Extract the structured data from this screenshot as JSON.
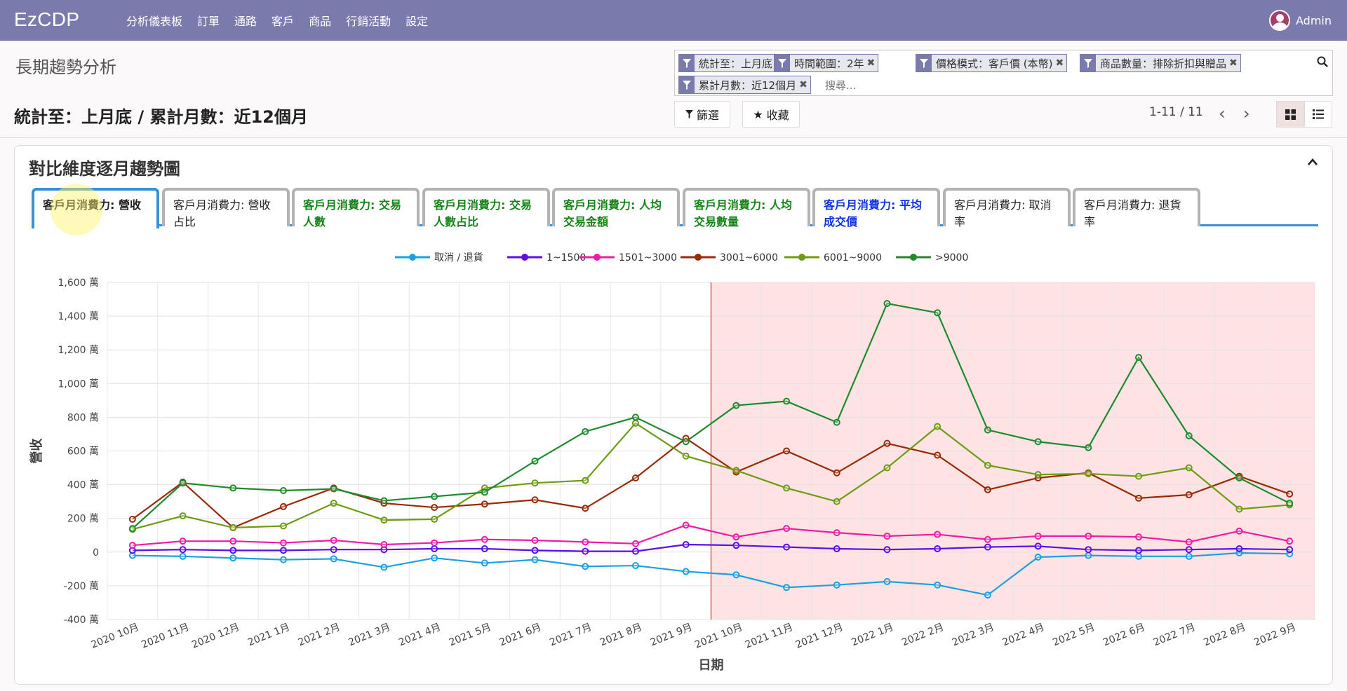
{
  "app": {
    "brand": "EzCDP",
    "menu": [
      "分析儀表板",
      "訂單",
      "通路",
      "客戶",
      "商品",
      "行銷活動",
      "設定"
    ],
    "user": "Admin"
  },
  "page": {
    "title": "長期趨勢分析",
    "subtitle": "統計至：上月底 / 累計月數：近12個月"
  },
  "search": {
    "facets": [
      "統計至：上月底",
      "時間範圍：2年",
      "價格模式：客戶價 (本幣)",
      "商品數量：排除折扣與贈品",
      "累計月數：近12個月"
    ],
    "placeholder": "搜尋..."
  },
  "toolbar": {
    "filter_label": "篩選",
    "favorites_label": "收藏",
    "pager": "1-11 / 11"
  },
  "card": {
    "title": "對比維度逐月趨勢圖",
    "tabs": [
      {
        "line1": "客戶月消費力: 營收",
        "line2": "",
        "color": "black",
        "active": true
      },
      {
        "line1": "客戶月消費力: 營收",
        "line2": "占比",
        "color": "black",
        "active": false
      },
      {
        "line1": "客戶月消費力: 交易",
        "line2": "人數",
        "color": "green",
        "active": false
      },
      {
        "line1": "客戶月消費力: 交易",
        "line2": "人數占比",
        "color": "green",
        "active": false
      },
      {
        "line1": "客戶月消費力: 人均",
        "line2": "交易金額",
        "color": "green",
        "active": false
      },
      {
        "line1": "客戶月消費力: 人均",
        "line2": "交易數量",
        "color": "green",
        "active": false
      },
      {
        "line1": "客戶月消費力: 平均",
        "line2": "成交價",
        "color": "blue",
        "active": false
      },
      {
        "line1": "客戶月消費力: 取消",
        "line2": "率",
        "color": "black",
        "active": false
      },
      {
        "line1": "客戶月消費力: 退貨",
        "line2": "率",
        "color": "black",
        "active": false
      }
    ]
  },
  "chart_data": {
    "type": "line",
    "xlabel": "日期",
    "ylabel": "營收",
    "y_unit": "萬",
    "ylim": [
      -400,
      1600
    ],
    "yticks": [
      -400,
      -200,
      0,
      200,
      400,
      600,
      800,
      1000,
      1200,
      1400,
      1600
    ],
    "ytick_labels": [
      "-400 萬",
      "-200 萬",
      "0",
      "200 萬",
      "400 萬",
      "600 萬",
      "800 萬",
      "1,000 萬",
      "1,200 萬",
      "1,400 萬",
      "1,600 萬"
    ],
    "grid": true,
    "legend_position": "top-center",
    "categories": [
      "2020 10月",
      "2020 11月",
      "2020 12月",
      "2021 1月",
      "2021 2月",
      "2021 3月",
      "2021 4月",
      "2021 5月",
      "2021 6月",
      "2021 7月",
      "2021 8月",
      "2021 9月",
      "2021 10月",
      "2021 11月",
      "2021 12月",
      "2022 1月",
      "2022 2月",
      "2022 3月",
      "2022 4月",
      "2022 5月",
      "2022 6月",
      "2022 7月",
      "2022 8月",
      "2022 9月"
    ],
    "highlight_range": {
      "start_index": 11.5,
      "end_index": 23.5,
      "color": "#fde3e3",
      "border": "#e06060"
    },
    "series": [
      {
        "name": "取消 / 退貨",
        "color": "#1ba1e2",
        "values": [
          -20,
          -25,
          -35,
          -45,
          -40,
          -90,
          -35,
          -65,
          -45,
          -85,
          -80,
          -115,
          -135,
          -210,
          -195,
          -175,
          -195,
          -255,
          -30,
          -20,
          -25,
          -25,
          -5,
          -10
        ]
      },
      {
        "name": "1~1500",
        "color": "#5b0ee8",
        "values": [
          10,
          15,
          10,
          10,
          15,
          15,
          20,
          20,
          10,
          5,
          5,
          45,
          40,
          30,
          20,
          15,
          20,
          30,
          35,
          15,
          10,
          15,
          20,
          15
        ]
      },
      {
        "name": "1501~3000",
        "color": "#f01ba5",
        "values": [
          40,
          65,
          65,
          55,
          70,
          45,
          55,
          75,
          70,
          60,
          50,
          160,
          90,
          140,
          115,
          95,
          105,
          75,
          95,
          95,
          90,
          60,
          125,
          65
        ]
      },
      {
        "name": "3001~6000",
        "color": "#9a2a06",
        "values": [
          195,
          415,
          145,
          270,
          380,
          290,
          265,
          285,
          310,
          260,
          440,
          675,
          475,
          600,
          470,
          645,
          575,
          370,
          440,
          470,
          320,
          340,
          450,
          345
        ]
      },
      {
        "name": "6001~9000",
        "color": "#6d9b12",
        "values": [
          135,
          215,
          145,
          155,
          290,
          190,
          195,
          380,
          410,
          425,
          765,
          570,
          485,
          380,
          300,
          500,
          745,
          515,
          460,
          465,
          450,
          500,
          255,
          280
        ]
      },
      {
        "name": ">9000",
        "color": "#1e8a2e",
        "values": [
          140,
          410,
          380,
          365,
          375,
          305,
          330,
          355,
          540,
          715,
          800,
          655,
          870,
          895,
          770,
          1475,
          1420,
          725,
          655,
          620,
          1155,
          690,
          440,
          290
        ]
      }
    ]
  }
}
